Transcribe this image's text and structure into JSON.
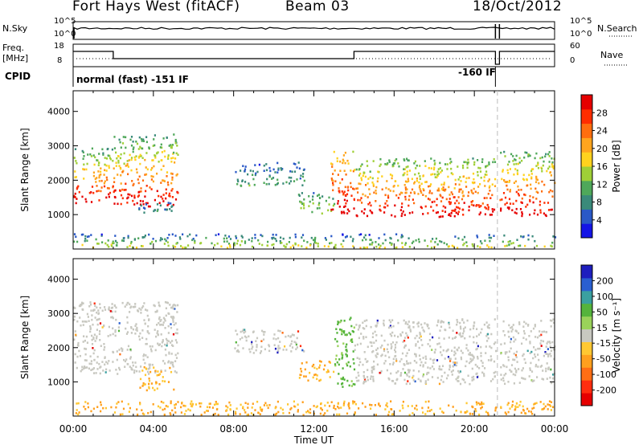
{
  "header": {
    "station": "Fort Hays West (fitACF)",
    "beam": "Beam 03",
    "date": "18/Oct/2012"
  },
  "status_panel": {
    "nsky_label": "N.Sky",
    "nsearch_label": "N.Search",
    "noise_ticks": [
      "10^5",
      "10^0"
    ],
    "freq_label": "Freq.",
    "freq_unit": "[MHz]",
    "freq_ticks": [
      "18",
      "8"
    ],
    "nave_label": "Nave",
    "nave_ticks": [
      "60",
      "0"
    ],
    "cpid_label": "CPID",
    "cpid_main": "normal (fast) -151 IF",
    "cpid_alt": "-160 IF"
  },
  "axes": {
    "xlabel": "Time UT",
    "ylabel": "Slant Range [km]",
    "xticks": [
      "00:00",
      "04:00",
      "08:00",
      "12:00",
      "16:00",
      "20:00",
      "00:00"
    ],
    "yticks": [
      "1000",
      "2000",
      "3000",
      "4000"
    ]
  },
  "power_colorbar": {
    "label": "Power [dB]",
    "ticks": [
      "4",
      "8",
      "12",
      "16",
      "20",
      "24",
      "28"
    ],
    "colors": [
      "#1414e6",
      "#2a59c7",
      "#3a8a7a",
      "#4fa85a",
      "#9fcf37",
      "#ffd21e",
      "#ffa51e",
      "#ff6e0f",
      "#ff2d00",
      "#e60000"
    ]
  },
  "velocity_colorbar": {
    "label": "Velocity [m s⁻¹]",
    "ticks": [
      "200",
      "100",
      "50",
      "15",
      "-15",
      "-50",
      "-100",
      "-200"
    ],
    "colors": [
      "#1e1ebe",
      "#2a5fd0",
      "#3aa0a0",
      "#55b43c",
      "#9ad25a",
      "#c8c8c0",
      "#ffc832",
      "#ffa01e",
      "#ff6e14",
      "#ff2d0f",
      "#e60000"
    ]
  },
  "chart_data": [
    {
      "type": "heatmap",
      "title": "",
      "xlabel": "Time UT",
      "ylabel": "Slant Range [km]",
      "xlim": [
        "00:00",
        "24:00"
      ],
      "ylim": [
        0,
        4600
      ],
      "colorbar": "Power [dB]",
      "color_range": [
        0,
        30
      ],
      "regions": [
        {
          "t_start": 0.0,
          "t_end": 2.0,
          "range_km": [
            1300,
            2900
          ],
          "dominant_power_db": [
            8,
            30
          ]
        },
        {
          "t_start": 2.0,
          "t_end": 5.2,
          "range_km": [
            1200,
            3300
          ],
          "dominant_power_db": [
            8,
            30
          ]
        },
        {
          "t_start": 3.2,
          "t_end": 5.0,
          "range_km": [
            1000,
            1400
          ],
          "dominant_power_db": [
            4,
            8
          ]
        },
        {
          "t_start": 8.0,
          "t_end": 11.5,
          "range_km": [
            1800,
            2500
          ],
          "dominant_power_db": [
            4,
            10
          ]
        },
        {
          "t_start": 11.2,
          "t_end": 13.0,
          "range_km": [
            1000,
            1600
          ],
          "dominant_power_db": [
            8,
            14
          ]
        },
        {
          "t_start": 12.8,
          "t_end": 14.0,
          "range_km": [
            1000,
            2800
          ],
          "dominant_power_db": [
            16,
            30
          ]
        },
        {
          "t_start": 14.0,
          "t_end": 21.0,
          "range_km": [
            900,
            2600
          ],
          "dominant_power_db": [
            10,
            30
          ]
        },
        {
          "t_start": 21.2,
          "t_end": 24.0,
          "range_km": [
            900,
            2800
          ],
          "dominant_power_db": [
            10,
            30
          ]
        },
        {
          "t_start": 0.0,
          "t_end": 24.0,
          "range_km": [
            0,
            400
          ],
          "dominant_power_db": [
            4,
            16
          ]
        }
      ]
    },
    {
      "type": "heatmap",
      "title": "",
      "xlabel": "Time UT",
      "ylabel": "Slant Range [km]",
      "xlim": [
        "00:00",
        "24:00"
      ],
      "ylim": [
        0,
        4600
      ],
      "colorbar": "Velocity [m s⁻¹]",
      "color_range": [
        -200,
        200
      ],
      "regions": [
        {
          "t_start": 0.0,
          "t_end": 5.2,
          "range_km": [
            1200,
            3300
          ],
          "dominant_velocity": "ground scatter (-15 to 15)"
        },
        {
          "t_start": 3.2,
          "t_end": 5.0,
          "range_km": [
            700,
            1400
          ],
          "dominant_velocity": "-50 to -100"
        },
        {
          "t_start": 8.0,
          "t_end": 11.5,
          "range_km": [
            1800,
            2500
          ],
          "dominant_velocity": "ground scatter (-15 to 15)"
        },
        {
          "t_start": 11.2,
          "t_end": 13.0,
          "range_km": [
            1000,
            1600
          ],
          "dominant_velocity": "-15 to -100"
        },
        {
          "t_start": 13.0,
          "t_end": 14.0,
          "range_km": [
            800,
            2900
          ],
          "dominant_velocity": "15 to 50"
        },
        {
          "t_start": 14.0,
          "t_end": 24.0,
          "range_km": [
            900,
            2800
          ],
          "dominant_velocity": "ground scatter (-15 to 15)"
        },
        {
          "t_start": 0.0,
          "t_end": 24.0,
          "range_km": [
            0,
            400
          ],
          "dominant_velocity": "-15 to -100"
        }
      ]
    }
  ]
}
